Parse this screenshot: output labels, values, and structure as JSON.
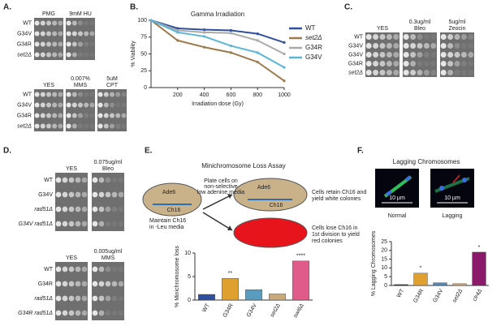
{
  "panels": {
    "A": {
      "label": "A.",
      "top": {
        "columns": [
          [
            "PMG"
          ],
          [
            "9mM HU"
          ]
        ],
        "rows": [
          "WT",
          "G34V",
          "G34R",
          "set2Δ"
        ]
      },
      "bottom": {
        "columns": [
          [
            "YES"
          ],
          [
            "0.007%",
            "MMS"
          ],
          [
            "5uM",
            "CPT"
          ]
        ],
        "rows": [
          "WT",
          "G34V",
          "G34R",
          "set2Δ"
        ]
      }
    },
    "B": {
      "label": "B."
    },
    "C": {
      "label": "C.",
      "block": {
        "columns": [
          [
            "YES"
          ],
          [
            "0.3ug/ml",
            "Bleo"
          ],
          [
            "5ug/ml",
            "Zeocin"
          ]
        ],
        "rows": [
          "WT",
          "G34V",
          "G34V",
          "G34R",
          "set2Δ"
        ]
      }
    },
    "D": {
      "label": "D.",
      "top": {
        "columns": [
          [
            "YES"
          ],
          [
            "0.075ug/ml",
            "Bleo"
          ]
        ],
        "rows": [
          "WT",
          "G34V",
          "rad51Δ",
          "G34V rad51Δ"
        ]
      },
      "bottom": {
        "columns": [
          [
            "YES"
          ],
          [
            "0.005ug/ml",
            "MMS"
          ]
        ],
        "rows": [
          "WT",
          "G34R",
          "rad51Δ",
          "G34R rad51Δ"
        ]
      }
    },
    "E": {
      "label": "E.",
      "title": "Minichromosome Loss Assay",
      "diagram": {
        "gene": "Ade6",
        "chromosome": "Ch16",
        "start": [
          "Maintain Ch16",
          "in -Leu media"
        ],
        "plate": [
          "Plate cells on",
          "non-selective",
          "low adenine media"
        ],
        "retain": [
          "Cells retain Ch16 and",
          "yield white colonies"
        ],
        "lose": [
          "Cells lose Ch16 in",
          "1st division to yield",
          "red colonies"
        ]
      }
    },
    "F": {
      "label": "F.",
      "title": "Lagging Chromosomes",
      "images": [
        "Normal",
        "Lagging"
      ],
      "scale_bar": "10 µm"
    }
  },
  "chart_data": [
    {
      "type": "line",
      "title": "Gamma Irradiation",
      "x_label": "Irradiation dose (Gy)",
      "y_label": "% Viability",
      "x": [
        0,
        200,
        400,
        600,
        800,
        1000
      ],
      "xlim": [
        0,
        1000
      ],
      "xticks": [
        200,
        400,
        600,
        800,
        1000
      ],
      "ylim": [
        0,
        100
      ],
      "yticks": [
        0,
        25,
        50,
        75,
        100
      ],
      "legend": "right",
      "series": [
        {
          "name": "WT",
          "color": "#2f4f9e",
          "values": [
            100,
            88,
            86,
            85,
            80,
            67
          ]
        },
        {
          "name": "set2Δ",
          "color": "#9c7a4a",
          "values": [
            100,
            70,
            60,
            52,
            38,
            10
          ]
        },
        {
          "name": "G34R",
          "color": "#aaaaaa",
          "values": [
            100,
            85,
            82,
            81,
            70,
            50
          ]
        },
        {
          "name": "G34V",
          "color": "#5bb5d8",
          "values": [
            100,
            82,
            76,
            62,
            52,
            30
          ]
        }
      ]
    },
    {
      "type": "bar",
      "y_label": "% Minichromosome loss",
      "categories": [
        "WT",
        "G34R",
        "G34V",
        "set2Δ",
        "swi6Δ"
      ],
      "values": [
        1.2,
        4.6,
        2.2,
        1.3,
        8.3
      ],
      "colors": [
        "#2f4f9e",
        "#e0a030",
        "#5a9cc0",
        "#c9a87a",
        "#e05a8a"
      ],
      "ylim": [
        0,
        10
      ],
      "yticks": [
        0,
        5,
        10
      ],
      "annotations": [
        {
          "text": "**",
          "category": "G34R"
        },
        {
          "text": "****",
          "category": "swi6Δ"
        }
      ]
    },
    {
      "type": "bar",
      "y_label": "% Lagging Chromosomes",
      "categories": [
        "WT",
        "G34R",
        "G34V",
        "set2Δ",
        "clr4Δ"
      ],
      "values": [
        0.5,
        7,
        1.5,
        1,
        19
      ],
      "colors": [
        "#1f2f6e",
        "#e0a030",
        "#4a8cc8",
        "#c9a87a",
        "#8b1a6b"
      ],
      "ylim": [
        0,
        25
      ],
      "yticks": [
        0,
        5,
        10,
        15,
        20,
        25
      ],
      "annotations": [
        {
          "text": "*",
          "category": "G34R"
        },
        {
          "text": "*",
          "category": "clr4Δ"
        }
      ]
    }
  ]
}
